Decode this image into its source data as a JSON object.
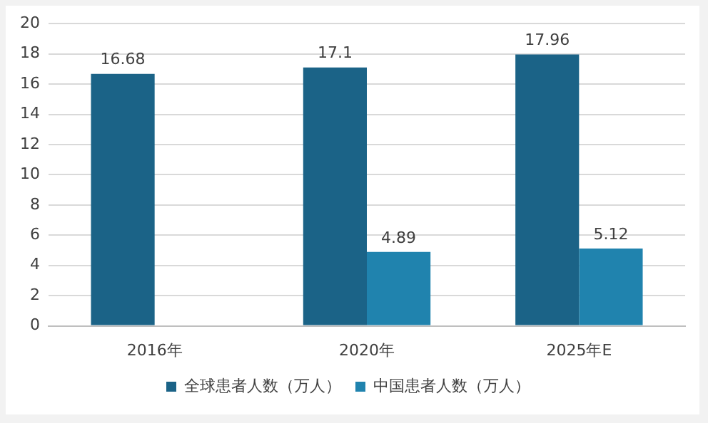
{
  "chart_data": {
    "type": "bar",
    "categories": [
      "2016年",
      "2020年",
      "2025年E"
    ],
    "series": [
      {
        "name": "全球患者人数（万人）",
        "color": "#1b6387",
        "values": [
          16.68,
          17.1,
          17.96
        ]
      },
      {
        "name": "中国患者人数（万人）",
        "color": "#2083ae",
        "values": [
          null,
          4.89,
          5.12
        ]
      }
    ],
    "ylim": [
      0,
      20
    ],
    "yticks": [
      0,
      2,
      4,
      6,
      8,
      10,
      12,
      14,
      16,
      18,
      20
    ],
    "grid": "y",
    "legend": "bottom",
    "data_labels": true
  }
}
